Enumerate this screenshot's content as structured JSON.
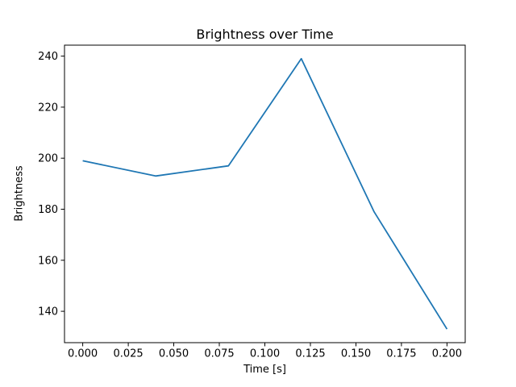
{
  "chart_data": {
    "type": "line",
    "title": "Brightness over Time",
    "xlabel": "Time [s]",
    "ylabel": "Brightness",
    "x": [
      0.0,
      0.04,
      0.08,
      0.12,
      0.16,
      0.2
    ],
    "series": [
      {
        "name": "brightness",
        "values": [
          199,
          193,
          197,
          239,
          179,
          133
        ]
      }
    ],
    "xlim": [
      -0.01,
      0.21
    ],
    "ylim": [
      127.7,
      244.3
    ],
    "xticks": {
      "values": [
        0.0,
        0.025,
        0.05,
        0.075,
        0.1,
        0.125,
        0.15,
        0.175,
        0.2
      ],
      "labels": [
        "0.000",
        "0.025",
        "0.050",
        "0.075",
        "0.100",
        "0.125",
        "0.150",
        "0.175",
        "0.200"
      ]
    },
    "yticks": {
      "values": [
        140,
        160,
        180,
        200,
        220,
        240
      ],
      "labels": [
        "140",
        "160",
        "180",
        "200",
        "220",
        "240"
      ]
    },
    "grid": false,
    "legend_position": "none",
    "line_color": "#1f77b4",
    "background_color": "#ffffff",
    "text_color": "#000000"
  }
}
